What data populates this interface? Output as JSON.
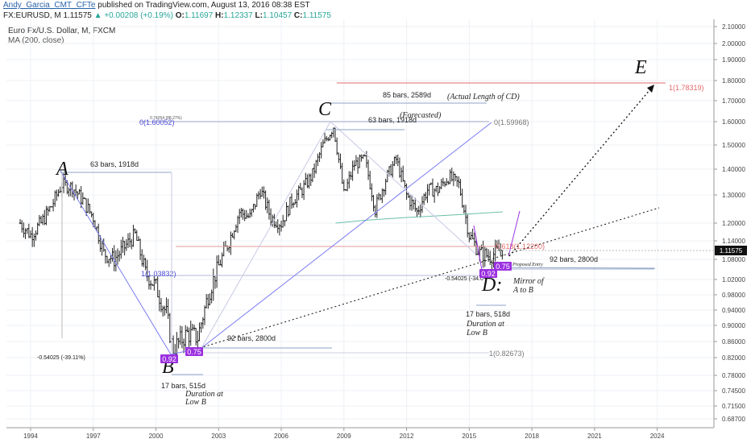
{
  "header": {
    "author": "Andy_Garcia_CMT_CFTe",
    "published": "published on TradingView.com, August 13, 2016 08:38 EST",
    "symbol_line": "FX:EURUSD, M 1.11575",
    "change": "+0.00208 (+0.19%)",
    "ohlc_o_label": "O:",
    "ohlc_o": "1.11697",
    "ohlc_h_label": "H:",
    "ohlc_h": "1.12337",
    "ohlc_l_label": "L:",
    "ohlc_l": "1.10457",
    "ohlc_c_label": "C:",
    "ohlc_c": "1.11575"
  },
  "legend": {
    "instrument": "Euro Fx/U.S. Dollar, M, FXCM",
    "indicator": "MA (200, close)"
  },
  "colors": {
    "candle": "#222222",
    "ma": "#6bbfa9",
    "trend_blue": "#7b7bf2",
    "fib_line": "#9aa0b4",
    "red_line": "#e36a6a",
    "purple_label": "#9b30e0",
    "dotted": "#111111",
    "price_box": "#111111"
  },
  "chart_data": {
    "type": "candlestick",
    "instrument": "EURUSD",
    "timeframe": "M",
    "x_ticks": [
      "1994",
      "1997",
      "2000",
      "2003",
      "2006",
      "2009",
      "2012",
      "2015",
      "2018",
      "2021",
      "2024"
    ],
    "y_ticks": [
      "2.10000",
      "2.00000",
      "1.90000",
      "1.80000",
      "1.70000",
      "1.60000",
      "1.50000",
      "1.40000",
      "1.30000",
      "1.20000",
      "1.14000",
      "1.08000",
      "1.02000",
      "0.98000",
      "0.94000",
      "0.90000",
      "0.86000",
      "0.82000",
      "0.78000",
      "0.74500",
      "0.71500",
      "0.68700"
    ],
    "last_price_label": "1.11575",
    "monthly_close_approx": [
      {
        "t": 1993.5,
        "v": 1.2
      },
      {
        "t": 1994.0,
        "v": 1.16
      },
      {
        "t": 1994.5,
        "v": 1.2
      },
      {
        "t": 1995.0,
        "v": 1.26
      },
      {
        "t": 1995.5,
        "v": 1.34
      },
      {
        "t": 1996.0,
        "v": 1.33
      },
      {
        "t": 1996.5,
        "v": 1.28
      },
      {
        "t": 1997.0,
        "v": 1.22
      },
      {
        "t": 1997.5,
        "v": 1.1
      },
      {
        "t": 1998.0,
        "v": 1.08
      },
      {
        "t": 1998.5,
        "v": 1.12
      },
      {
        "t": 1999.0,
        "v": 1.16
      },
      {
        "t": 1999.5,
        "v": 1.04
      },
      {
        "t": 2000.0,
        "v": 1.0
      },
      {
        "t": 2000.5,
        "v": 0.93
      },
      {
        "t": 2000.8,
        "v": 0.84
      },
      {
        "t": 2001.5,
        "v": 0.88
      },
      {
        "t": 2002.0,
        "v": 0.87
      },
      {
        "t": 2002.5,
        "v": 0.98
      },
      {
        "t": 2003.0,
        "v": 1.06
      },
      {
        "t": 2003.5,
        "v": 1.14
      },
      {
        "t": 2004.0,
        "v": 1.24
      },
      {
        "t": 2004.5,
        "v": 1.22
      },
      {
        "t": 2005.0,
        "v": 1.32
      },
      {
        "t": 2005.5,
        "v": 1.22
      },
      {
        "t": 2006.0,
        "v": 1.2
      },
      {
        "t": 2006.5,
        "v": 1.28
      },
      {
        "t": 2007.0,
        "v": 1.32
      },
      {
        "t": 2007.5,
        "v": 1.38
      },
      {
        "t": 2008.0,
        "v": 1.5
      },
      {
        "t": 2008.5,
        "v": 1.58
      },
      {
        "t": 2009.0,
        "v": 1.3
      },
      {
        "t": 2009.5,
        "v": 1.42
      },
      {
        "t": 2010.0,
        "v": 1.44
      },
      {
        "t": 2010.5,
        "v": 1.25
      },
      {
        "t": 2011.0,
        "v": 1.36
      },
      {
        "t": 2011.5,
        "v": 1.44
      },
      {
        "t": 2012.0,
        "v": 1.3
      },
      {
        "t": 2012.5,
        "v": 1.24
      },
      {
        "t": 2013.0,
        "v": 1.32
      },
      {
        "t": 2013.5,
        "v": 1.32
      },
      {
        "t": 2014.0,
        "v": 1.37
      },
      {
        "t": 2014.5,
        "v": 1.34
      },
      {
        "t": 2015.0,
        "v": 1.16
      },
      {
        "t": 2015.5,
        "v": 1.1
      },
      {
        "t": 2016.0,
        "v": 1.09
      },
      {
        "t": 2016.6,
        "v": 1.11575
      }
    ],
    "moving_average_200": [
      {
        "t": 2008.6,
        "v": 1.2
      },
      {
        "t": 2010.0,
        "v": 1.21
      },
      {
        "t": 2012.0,
        "v": 1.22
      },
      {
        "t": 2014.5,
        "v": 1.23
      },
      {
        "t": 2016.6,
        "v": 1.24
      }
    ],
    "pattern_points": [
      {
        "label": "A",
        "t": 1995.3,
        "v": 1.4
      },
      {
        "label": "B",
        "t": 2000.8,
        "v": 0.83
      },
      {
        "label": "C",
        "t": 2008.5,
        "v": 1.6
      },
      {
        "label": "D:",
        "t": 2015.6,
        "v": 1.07
      },
      {
        "label": "E",
        "t": 2023.6,
        "v": 1.81
      }
    ],
    "annotations": {
      "bars_A": "63 bars, 1918d",
      "bars_C": "63 bars, 1918d",
      "forecasted": "(Forecasted)",
      "bars_85": "85 bars, 2589d",
      "actual_cd": "(Actual Length of CD)",
      "bars_92_B": "92 bars, 2800d",
      "bars_92_D": "92 bars, 2800d",
      "bars_17_B": "17 bars, 515d",
      "dur_B_1": "Duration at",
      "dur_B_2": "Low B",
      "bars_17_D": "17 bars, 518d",
      "dur_D_1": "Duration at",
      "dur_D_2": "Low B",
      "mirror_1": "Mirror of",
      "mirror_2": "A to B",
      "proposed": "Proposed Entry",
      "fib_low_left": "-0.54025 (-39.11%)",
      "fib_low_right": "-0.54025 (-34.0",
      "fib_top_small": "0.74254 (88.27%)",
      "fib_zero_left": "0(1.60052)",
      "fib_zero_right": "0(1.59968)",
      "fib_one_left": "1(1.03832)",
      "fib_one_bottom": "1(0.82673)",
      "fib_e": "1(1.78319)",
      "fib_mid_red": "0.618(1.12200)",
      "ratio_b": "0.92",
      "ratio_b2": "0.75",
      "ratio_d": "0.92",
      "ratio_d2": "0.75"
    }
  }
}
